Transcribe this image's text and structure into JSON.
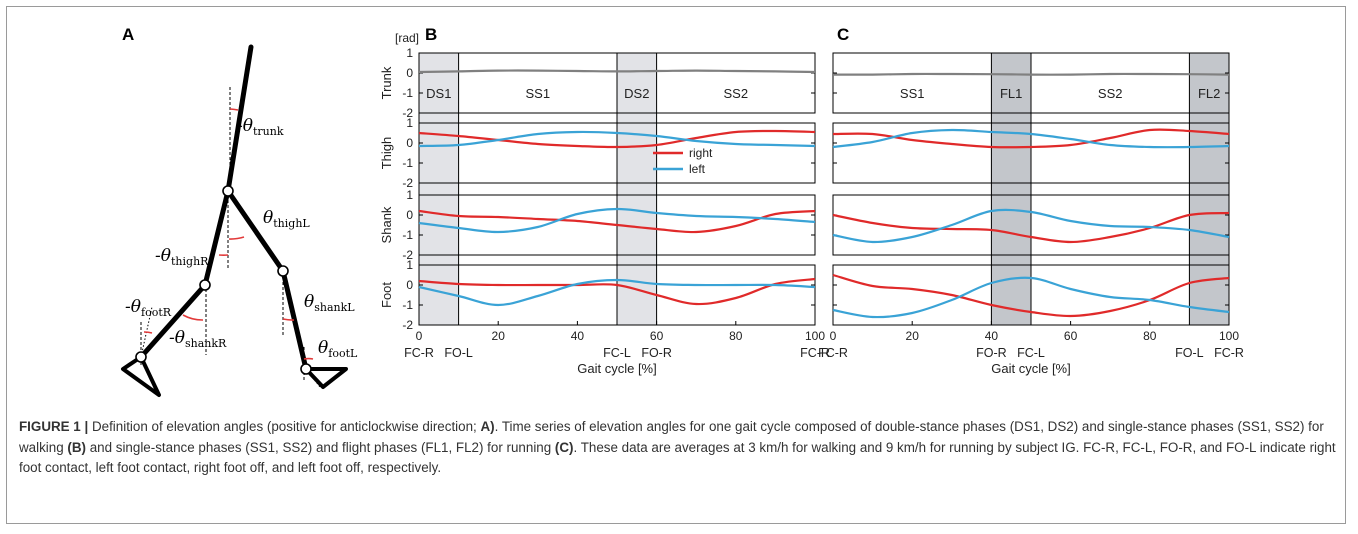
{
  "panels": {
    "a": "A",
    "b": "B",
    "c": "C"
  },
  "rad_unit": "[rad]",
  "xlabel": "Gait cycle [%]",
  "x_ticks": [
    "0",
    "20",
    "40",
    "60",
    "80",
    "100"
  ],
  "y_ticks": [
    "1",
    "0",
    "-1",
    "-2"
  ],
  "row_labels": [
    "Trunk",
    "Thigh",
    "Shank",
    "Foot"
  ],
  "legend": [
    {
      "name": "right",
      "color": "#e02a2a"
    },
    {
      "name": "left",
      "color": "#3aa3d6"
    }
  ],
  "colors": {
    "right": "#e02a2a",
    "left": "#3aa3d6",
    "trunk": "#808080",
    "walk_band": "#e2e3e7",
    "run_band": "#c3c6cb",
    "arrow": "#e23a3a"
  },
  "diagram": {
    "labels": {
      "trunk": {
        "prefix": "-",
        "theta": "θ",
        "sub": "trunk"
      },
      "thighL": {
        "prefix": "",
        "theta": "θ",
        "sub": "thighL"
      },
      "thighR": {
        "prefix": "-",
        "theta": "θ",
        "sub": "thighR"
      },
      "shankL": {
        "prefix": "",
        "theta": "θ",
        "sub": "shankL"
      },
      "footR": {
        "prefix": "-",
        "theta": "θ",
        "sub": "footR"
      },
      "shankR": {
        "prefix": "-",
        "theta": "θ",
        "sub": "shankR"
      },
      "footL": {
        "prefix": "",
        "theta": "θ",
        "sub": "footL"
      }
    }
  },
  "chart_data": [
    {
      "panel": "B",
      "type": "line",
      "title": "",
      "x_range": [
        0,
        100
      ],
      "y_range": [
        -2,
        1
      ],
      "grid": false,
      "legend_placement": "inside Thigh subplot, center",
      "shaded_phases": [
        {
          "from": 0,
          "to": 10
        },
        {
          "from": 50,
          "to": 60
        }
      ],
      "phase_labels": [
        {
          "label": "DS1",
          "x": 5
        },
        {
          "label": "SS1",
          "x": 30
        },
        {
          "label": "DS2",
          "x": 55
        },
        {
          "label": "SS2",
          "x": 80
        }
      ],
      "events": [
        {
          "label": "FC-R",
          "x": 0
        },
        {
          "label": "FO-L",
          "x": 10
        },
        {
          "label": "FC-L",
          "x": 50
        },
        {
          "label": "FO-R",
          "x": 60
        },
        {
          "label": "FC-R",
          "x": 100
        }
      ],
      "x": [
        0,
        10,
        20,
        30,
        40,
        50,
        60,
        70,
        80,
        90,
        100
      ],
      "rows": [
        {
          "name": "Trunk",
          "series": [
            {
              "values": [
                0.05,
                0.08,
                0.12,
                0.12,
                0.1,
                0.08,
                0.1,
                0.12,
                0.1,
                0.08,
                0.05
              ]
            }
          ]
        },
        {
          "name": "Thigh",
          "series": [
            {
              "name": "right",
              "values": [
                0.5,
                0.35,
                0.15,
                -0.05,
                -0.15,
                -0.2,
                -0.1,
                0.25,
                0.55,
                0.6,
                0.55
              ]
            },
            {
              "name": "left",
              "values": [
                -0.15,
                -0.1,
                0.15,
                0.45,
                0.55,
                0.5,
                0.35,
                0.1,
                -0.05,
                -0.1,
                -0.15
              ]
            }
          ]
        },
        {
          "name": "Shank",
          "series": [
            {
              "values": [
                0.2,
                -0.05,
                -0.1,
                -0.2,
                -0.3,
                -0.5,
                -0.7,
                -0.85,
                -0.55,
                0.05,
                0.2
              ]
            },
            {
              "values": [
                -0.4,
                -0.65,
                -0.85,
                -0.6,
                0.05,
                0.3,
                0.1,
                -0.05,
                -0.1,
                -0.2,
                -0.35
              ]
            }
          ]
        },
        {
          "name": "Foot",
          "series": [
            {
              "values": [
                0.2,
                0.05,
                0.0,
                0.0,
                0.0,
                0.0,
                -0.5,
                -0.95,
                -0.65,
                0.05,
                0.3
              ]
            },
            {
              "values": [
                -0.1,
                -0.55,
                -1.0,
                -0.55,
                0.05,
                0.25,
                0.05,
                0.0,
                0.0,
                0.0,
                -0.1
              ]
            }
          ]
        }
      ]
    },
    {
      "panel": "C",
      "type": "line",
      "title": "",
      "x_range": [
        0,
        100
      ],
      "y_range": [
        -2,
        1
      ],
      "grid": false,
      "shaded_phases": [
        {
          "from": 40,
          "to": 50
        },
        {
          "from": 90,
          "to": 100
        }
      ],
      "phase_labels": [
        {
          "label": "SS1",
          "x": 20
        },
        {
          "label": "FL1",
          "x": 45
        },
        {
          "label": "SS2",
          "x": 70
        },
        {
          "label": "FL2",
          "x": 95
        }
      ],
      "events": [
        {
          "label": "FC-R",
          "x": 0
        },
        {
          "label": "FO-R",
          "x": 40
        },
        {
          "label": "FC-L",
          "x": 50
        },
        {
          "label": "FO-L",
          "x": 90
        },
        {
          "label": "FC-R",
          "x": 100
        }
      ],
      "x": [
        0,
        10,
        20,
        30,
        40,
        50,
        60,
        70,
        80,
        90,
        100
      ],
      "rows": [
        {
          "name": "Trunk",
          "series": [
            {
              "values": [
                -0.08,
                -0.08,
                -0.05,
                -0.05,
                -0.06,
                -0.08,
                -0.08,
                -0.05,
                -0.05,
                -0.06,
                -0.08
              ]
            }
          ]
        },
        {
          "name": "Thigh",
          "series": [
            {
              "values": [
                0.45,
                0.45,
                0.15,
                -0.05,
                -0.2,
                -0.2,
                -0.1,
                0.25,
                0.65,
                0.6,
                0.45
              ]
            },
            {
              "values": [
                -0.2,
                0.05,
                0.5,
                0.65,
                0.55,
                0.45,
                0.2,
                -0.1,
                -0.2,
                -0.2,
                -0.15
              ]
            }
          ]
        },
        {
          "name": "Shank",
          "series": [
            {
              "values": [
                0.0,
                -0.4,
                -0.65,
                -0.7,
                -0.75,
                -1.1,
                -1.35,
                -1.1,
                -0.65,
                0.0,
                0.1
              ]
            },
            {
              "values": [
                -1.0,
                -1.35,
                -1.1,
                -0.5,
                0.2,
                0.15,
                -0.3,
                -0.55,
                -0.6,
                -0.75,
                -1.1
              ]
            }
          ]
        },
        {
          "name": "Foot",
          "series": [
            {
              "values": [
                0.5,
                -0.05,
                -0.2,
                -0.5,
                -1.0,
                -1.35,
                -1.55,
                -1.3,
                -0.75,
                0.1,
                0.35
              ]
            },
            {
              "values": [
                -1.25,
                -1.6,
                -1.4,
                -0.75,
                0.1,
                0.35,
                -0.2,
                -0.6,
                -0.75,
                -1.1,
                -1.35
              ]
            }
          ]
        }
      ]
    }
  ],
  "caption": {
    "label": "FIGURE 1 |",
    "t1": " Definition of elevation angles (positive for anticlockwise direction; ",
    "A": "A)",
    "t2": ". Time series of elevation angles for one gait cycle composed of double-stance phases (DS1, DS2) and single-stance phases (SS1, SS2) for walking ",
    "B": "(B)",
    "t3": " and single-stance phases (SS1, SS2) and flight phases (FL1, FL2) for running ",
    "C": "(C)",
    "t4": ". These data are averages at 3 km/h for walking and 9 km/h for running by subject IG. FC-R, FC-L, FO-R, and FO-L indicate right foot contact, left foot contact, right foot off, and left foot off, respectively."
  }
}
